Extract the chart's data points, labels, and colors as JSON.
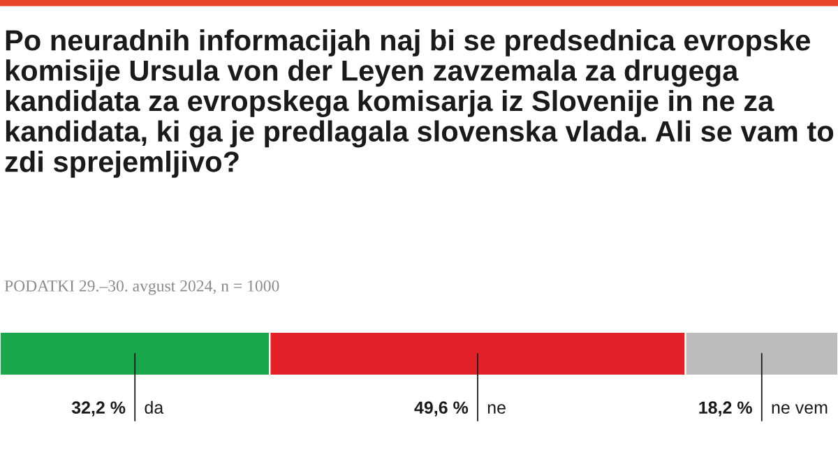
{
  "chart_data": {
    "type": "bar",
    "orientation": "horizontal",
    "stacked": true,
    "title": "Po neuradnih informacijah naj bi se predsednica evropske komisije Ursula von der Leyen zavzemala za drugega kandidata za evropskega komisarja iz Slovenije in ne za kandidata, ki ga je predlagala slovenska vlada. Ali se vam to zdi sprejemljivo?",
    "annotations": [
      "PODATKI 29.–30. avgust 2024, n = 1000"
    ],
    "categories": [
      null
    ],
    "xlim": [
      0,
      100
    ],
    "series": [
      {
        "name": "da",
        "color": "#1aa64a",
        "values": [
          32.2
        ],
        "value_labels": [
          "32,2 %"
        ]
      },
      {
        "name": "ne",
        "color": "#e32128",
        "values": [
          49.6
        ],
        "value_labels": [
          "49,6 %"
        ]
      },
      {
        "name": "ne vem",
        "color": "#bcbcbc",
        "values": [
          18.2
        ],
        "value_labels": [
          "18,2 %"
        ]
      }
    ]
  }
}
